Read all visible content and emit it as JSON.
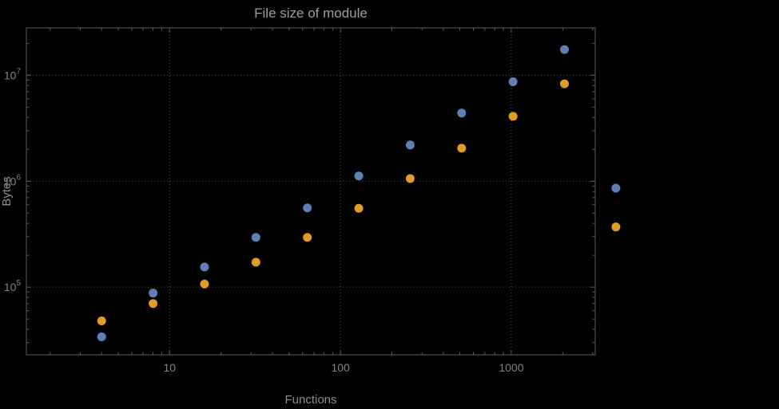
{
  "chart_data": {
    "type": "scatter",
    "title": "File size of module",
    "xlabel": "Functions",
    "ylabel": "Bytes",
    "x_scale": "log",
    "y_scale": "log",
    "xlim": [
      1.45,
      3100
    ],
    "ylim": [
      23000,
      28000000
    ],
    "grid": "dotted lines at major ticks only",
    "legend": "none",
    "frame": true,
    "x_ticks": [
      {
        "value": 10,
        "label": "10"
      },
      {
        "value": 100,
        "label": "100"
      },
      {
        "value": 1000,
        "label": "1000"
      }
    ],
    "y_ticks": [
      {
        "value": 100000,
        "mantissa": "10",
        "exponent": "5"
      },
      {
        "value": 1000000,
        "mantissa": "10",
        "exponent": "6"
      },
      {
        "value": 10000000,
        "mantissa": "10",
        "exponent": "7"
      }
    ],
    "x": [
      4,
      8,
      16,
      32,
      64,
      128,
      256,
      512,
      1024,
      2048,
      4096
    ],
    "series": [
      {
        "name": "series-blue",
        "color": "#5e81b5",
        "values": [
          34000,
          88000,
          155000,
          295000,
          560000,
          1120000,
          2200000,
          4400000,
          8700000,
          17500000,
          860000
        ]
      },
      {
        "name": "series-orange",
        "color": "#e19c24",
        "values": [
          48000,
          70000,
          107000,
          172000,
          295000,
          555000,
          1060000,
          2050000,
          4100000,
          8300000,
          370000
        ]
      }
    ],
    "style": {
      "background": "#000000",
      "frame_color": "#5c5c5c",
      "grid_color": "#555555",
      "tick_label_color": "#828282",
      "axis_label_color": "#8c8c8c",
      "title_color": "#9e9e9e",
      "point_radius": 5.5
    }
  }
}
